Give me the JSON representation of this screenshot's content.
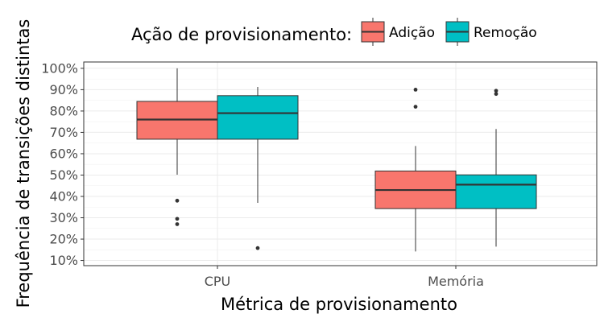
{
  "chart_data": {
    "type": "boxplot",
    "xlabel": "Métrica de provisionamento",
    "ylabel": "Frequência de transições distintas",
    "ylim": [
      10,
      100
    ],
    "y_ticks": [
      10,
      20,
      30,
      40,
      50,
      60,
      70,
      80,
      90,
      100
    ],
    "y_tick_suffix": "%",
    "grid": true,
    "legend": {
      "title": "Ação de provisionamento:",
      "position": "top"
    },
    "categories": [
      "CPU",
      "Memória"
    ],
    "series": [
      {
        "name": "Adição",
        "color": "#F8766D",
        "boxes": [
          {
            "category": "CPU",
            "whisker_low": 50.2,
            "q1": 66.8,
            "median": 76.0,
            "q3": 84.5,
            "whisker_high": 100.0,
            "outliers": [
              38.0,
              29.5,
              27.0
            ]
          },
          {
            "category": "Memória",
            "whisker_low": 14.2,
            "q1": 34.3,
            "median": 43.0,
            "q3": 51.9,
            "whisker_high": 63.6,
            "outliers": [
              90.0,
              82.0
            ]
          }
        ]
      },
      {
        "name": "Remoção",
        "color": "#00BFC4",
        "boxes": [
          {
            "category": "CPU",
            "whisker_low": 37.0,
            "q1": 66.8,
            "median": 79.0,
            "q3": 87.2,
            "whisker_high": 91.3,
            "outliers": [
              15.8
            ]
          },
          {
            "category": "Memória",
            "whisker_low": 16.5,
            "q1": 34.3,
            "median": 45.5,
            "q3": 50.1,
            "whisker_high": 71.6,
            "outliers": [
              89.5,
              88.0
            ]
          }
        ]
      }
    ]
  }
}
